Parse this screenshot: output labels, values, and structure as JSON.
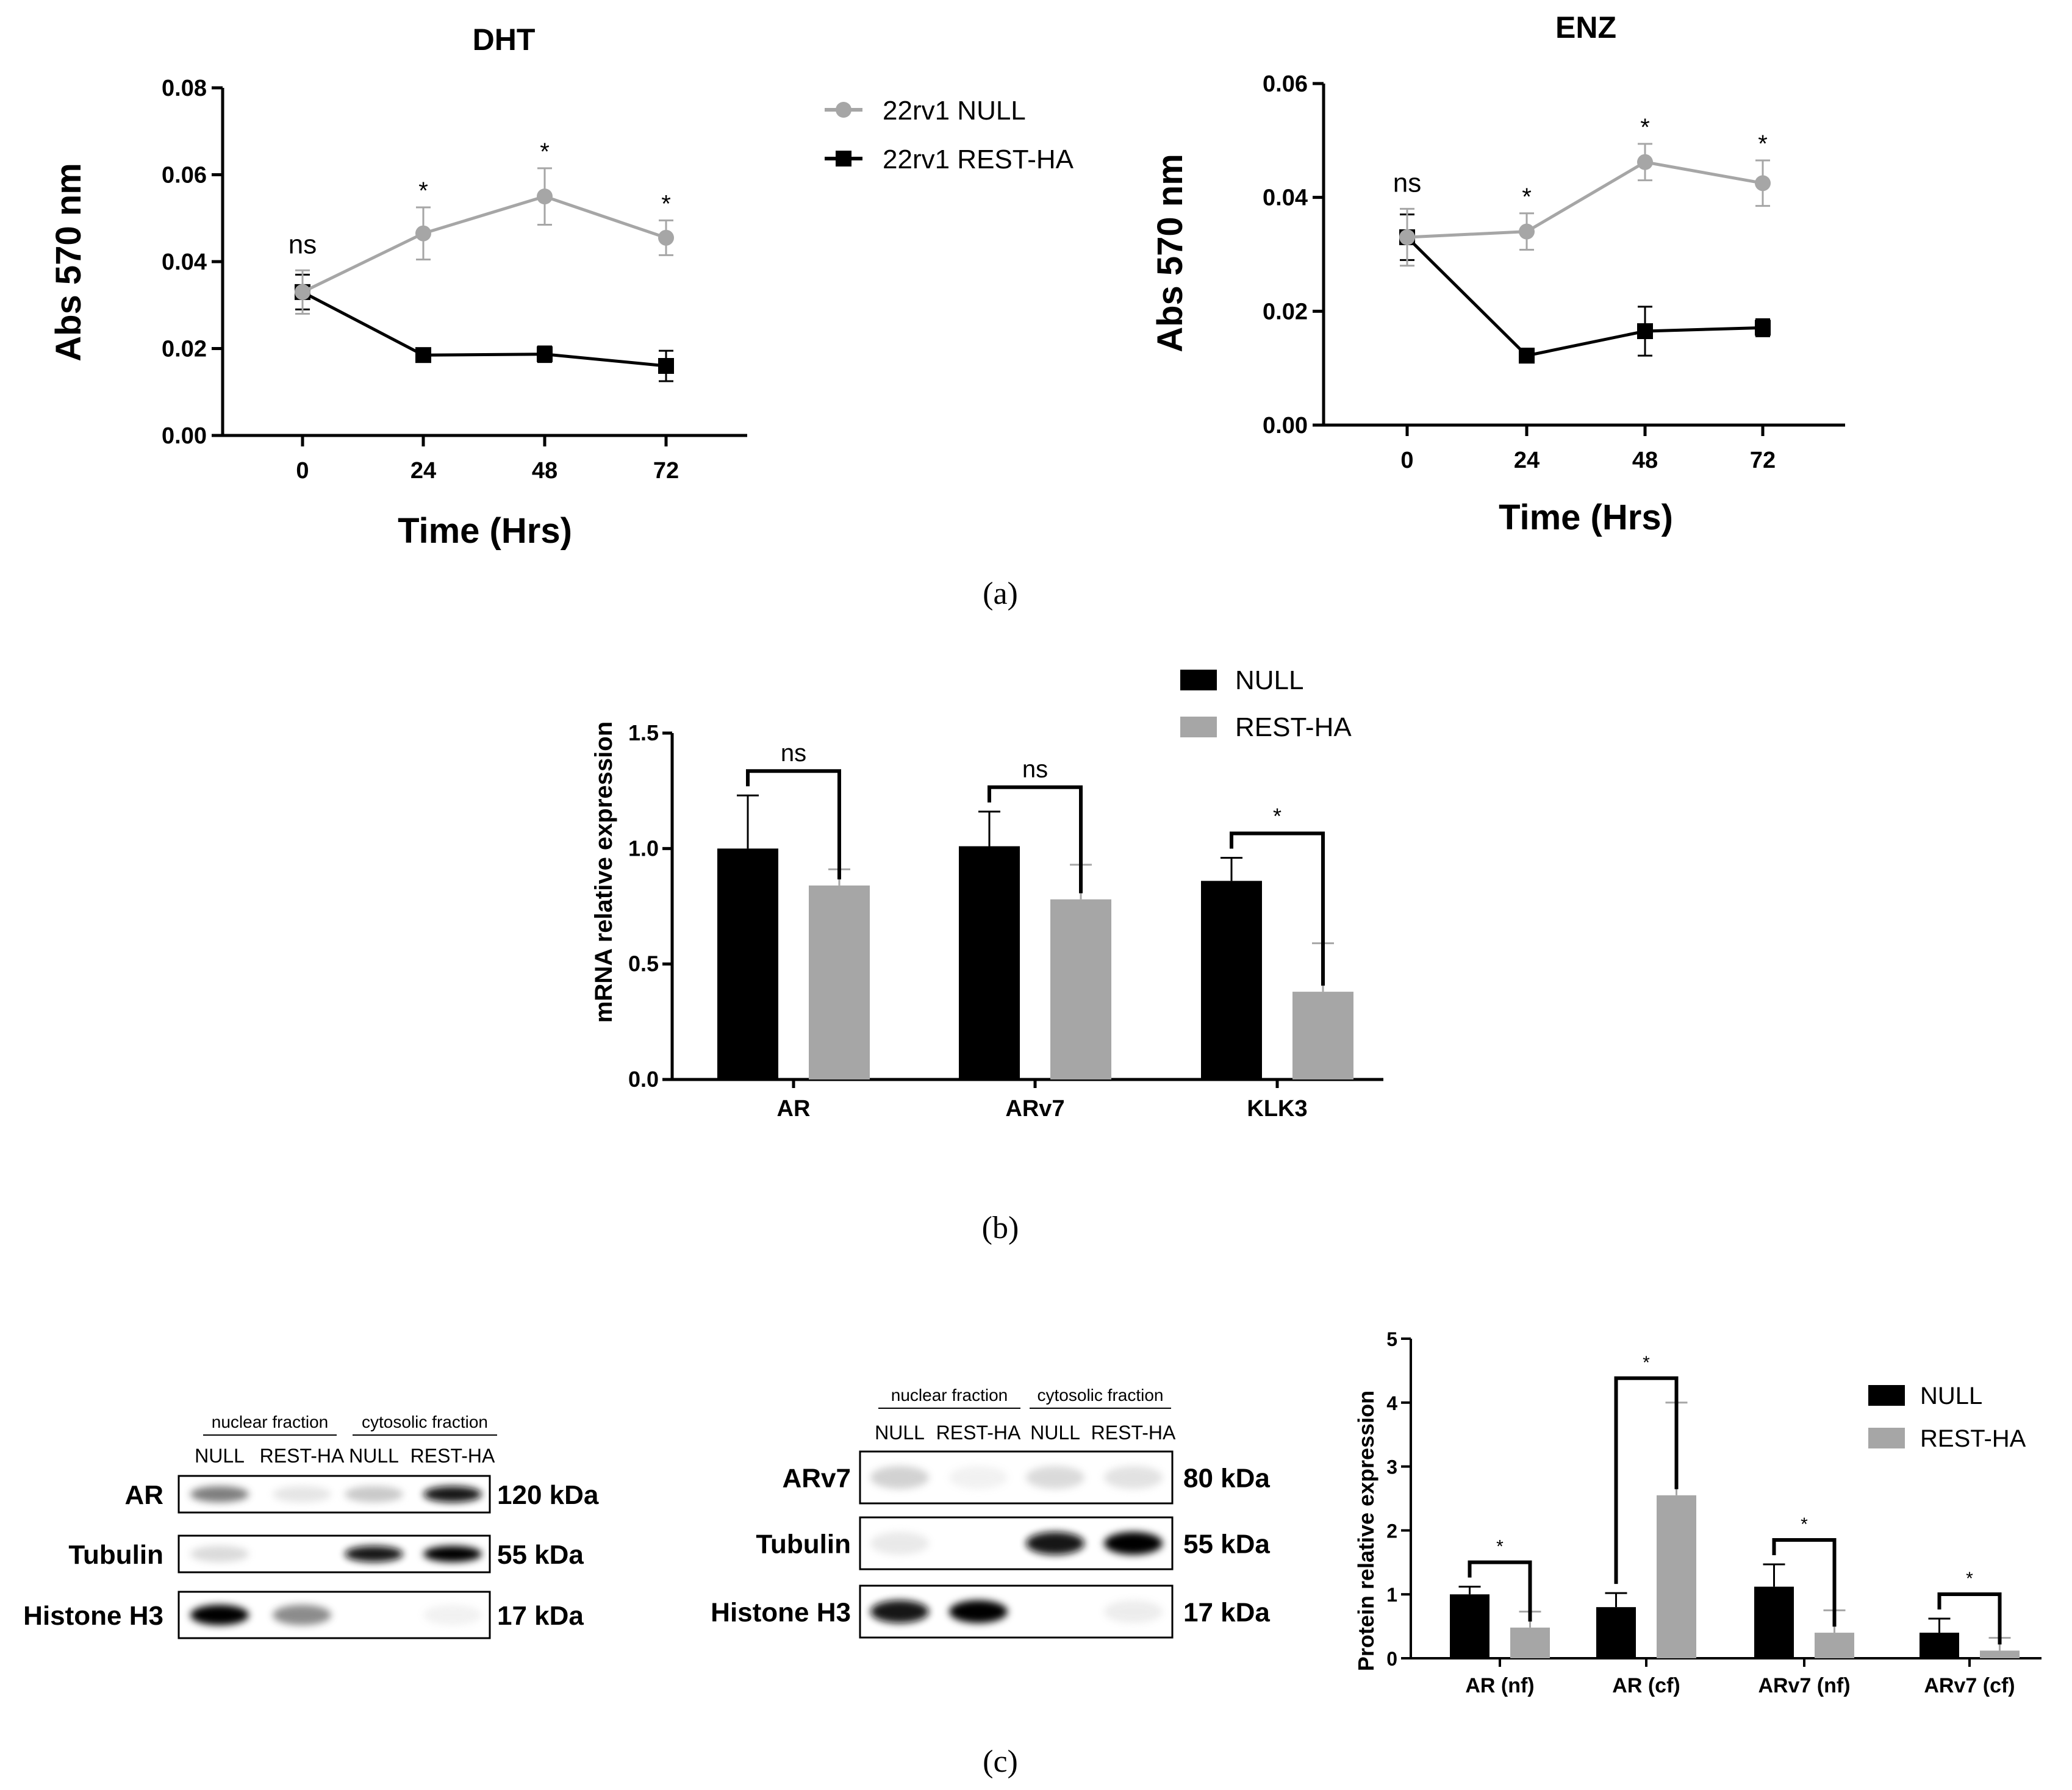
{
  "colors": {
    "null_line": "#a6a6a6",
    "rest_line": "#000000",
    "null_bar": "#000000",
    "rest_bar": "#a6a6a6",
    "axis": "#000000"
  },
  "panel_labels": {
    "a": "(a)",
    "b": "(b)",
    "c": "(c)"
  },
  "chart_data": [
    {
      "id": "dht",
      "type": "line",
      "title": "DHT",
      "xlabel": "Time (Hrs)",
      "ylabel": "Abs 570 nm",
      "x": [
        0,
        24,
        48,
        72
      ],
      "xticks": [
        "0",
        "24",
        "48",
        "72"
      ],
      "ylim": [
        0,
        0.08
      ],
      "yticks": [
        "0.00",
        "0.02",
        "0.04",
        "0.06",
        "0.08"
      ],
      "series": [
        {
          "name": "22rv1 NULL",
          "marker": "circle",
          "values": [
            0.033,
            0.0465,
            0.055,
            0.0455
          ],
          "errors": [
            0.005,
            0.006,
            0.0065,
            0.004
          ]
        },
        {
          "name": "22rv1 REST-HA",
          "marker": "square",
          "values": [
            0.033,
            0.0185,
            0.0187,
            0.016
          ],
          "errors": [
            0.004,
            0.0015,
            0.0018,
            0.0035
          ]
        }
      ],
      "annotations": [
        "ns",
        "*",
        "*",
        "*"
      ],
      "legend": [
        {
          "label": "22rv1 NULL"
        },
        {
          "label": "22rv1 REST-HA"
        }
      ]
    },
    {
      "id": "enz",
      "type": "line",
      "title": "ENZ",
      "xlabel": "Time (Hrs)",
      "ylabel": "Abs 570 nm",
      "x": [
        0,
        24,
        48,
        72
      ],
      "xticks": [
        "0",
        "24",
        "48",
        "72"
      ],
      "ylim": [
        0,
        0.06
      ],
      "yticks": [
        "0.00",
        "0.02",
        "0.04",
        "0.06"
      ],
      "series": [
        {
          "name": "22rv1 NULL",
          "marker": "circle",
          "values": [
            0.033,
            0.034,
            0.0462,
            0.0425
          ],
          "errors": [
            0.005,
            0.0032,
            0.0032,
            0.004
          ]
        },
        {
          "name": "22rv1 REST-HA",
          "marker": "square",
          "values": [
            0.033,
            0.0122,
            0.0165,
            0.0171
          ],
          "errors": [
            0.004,
            0.0012,
            0.0043,
            0.0015
          ]
        }
      ],
      "annotations": [
        "ns",
        "*",
        "*",
        "*"
      ]
    },
    {
      "id": "mrna",
      "type": "bar",
      "xlabel": "",
      "ylabel": "mRNA relative expression",
      "categories": [
        "AR",
        "ARv7",
        "KLK3"
      ],
      "ylim": [
        0,
        1.5
      ],
      "yticks": [
        "0.0",
        "0.5",
        "1.0",
        "1.5"
      ],
      "series": [
        {
          "name": "NULL",
          "values": [
            1.0,
            1.01,
            0.86
          ],
          "errors": [
            0.23,
            0.15,
            0.1
          ]
        },
        {
          "name": "REST-HA",
          "values": [
            0.84,
            0.78,
            0.38
          ],
          "errors": [
            0.07,
            0.15,
            0.21
          ]
        }
      ],
      "significance": [
        "ns",
        "ns",
        "*"
      ],
      "legend": [
        {
          "label": "NULL"
        },
        {
          "label": "REST-HA"
        }
      ]
    },
    {
      "id": "protein",
      "type": "bar",
      "xlabel": "",
      "ylabel": "Protein relative expression",
      "categories": [
        "AR (nf)",
        "AR (cf)",
        "ARv7 (nf)",
        "ARv7 (cf)"
      ],
      "ylim": [
        0,
        5
      ],
      "yticks": [
        "0",
        "1",
        "2",
        "3",
        "4",
        "5"
      ],
      "series": [
        {
          "name": "NULL",
          "values": [
            1.0,
            0.8,
            1.12,
            0.4
          ],
          "errors": [
            0.12,
            0.22,
            0.35,
            0.22
          ]
        },
        {
          "name": "REST-HA",
          "values": [
            0.48,
            2.55,
            0.4,
            0.12
          ],
          "errors": [
            0.25,
            1.45,
            0.35,
            0.2
          ]
        }
      ],
      "significance": [
        "*",
        "*",
        "*",
        "*"
      ],
      "legend": [
        {
          "label": "NULL"
        },
        {
          "label": "REST-HA"
        }
      ]
    }
  ],
  "blots": [
    {
      "id": "blot1",
      "fractions": [
        "nuclear fraction",
        "cytosolic fraction"
      ],
      "lanes": [
        "NULL",
        "REST-HA",
        "NULL",
        "REST-HA"
      ],
      "rows": [
        {
          "label": "AR",
          "size": "120 kDa",
          "intensity": [
            0.65,
            0.18,
            0.35,
            0.95
          ]
        },
        {
          "label": "Tubulin",
          "size": "55 kDa",
          "intensity": [
            0.25,
            0.0,
            0.95,
            1.0
          ]
        },
        {
          "label": "Histone H3",
          "size": "17 kDa",
          "intensity": [
            1.0,
            0.6,
            0.0,
            0.08
          ]
        }
      ]
    },
    {
      "id": "blot2",
      "fractions": [
        "nuclear fraction",
        "cytosolic fraction"
      ],
      "lanes": [
        "NULL",
        "REST-HA",
        "NULL",
        "REST-HA"
      ],
      "rows": [
        {
          "label": "ARv7",
          "size": "80 kDa",
          "intensity": [
            0.3,
            0.08,
            0.25,
            0.2
          ]
        },
        {
          "label": "Tubulin",
          "size": "55 kDa",
          "intensity": [
            0.15,
            0.0,
            0.95,
            1.0
          ]
        },
        {
          "label": "Histone H3",
          "size": "17 kDa",
          "intensity": [
            0.95,
            1.0,
            0.0,
            0.12
          ]
        }
      ]
    }
  ]
}
